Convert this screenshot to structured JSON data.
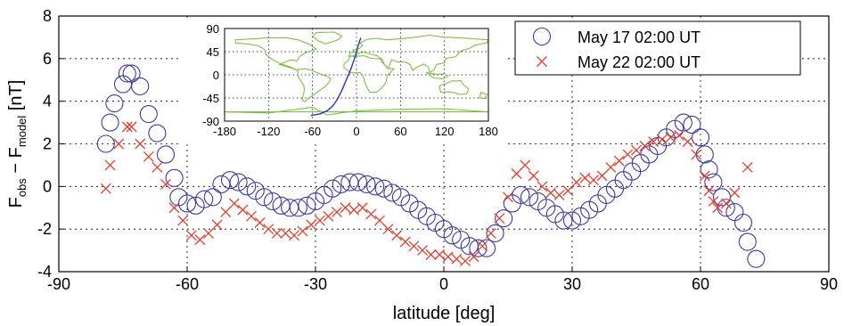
{
  "chart_data": {
    "type": "scatter",
    "xlabel": "latitude [deg]",
    "ylabel": {
      "main": "F",
      "sub1": "obs",
      "dash": " − F",
      "sub2": "model",
      "unit": " [nT]"
    },
    "xlim": [
      -90,
      90
    ],
    "ylim": [
      -4,
      8
    ],
    "xticks": [
      "-90",
      "-60",
      "-30",
      "0",
      "30",
      "60",
      "90"
    ],
    "yticks": [
      "-4",
      "-2",
      "0",
      "2",
      "4",
      "6",
      "8"
    ],
    "grid": true,
    "legend_placement": "top-right",
    "series": [
      {
        "name": "May 17 02:00 UT",
        "marker": "circle",
        "color": "#3a3aa0",
        "points": [
          [
            -79,
            2.0
          ],
          [
            -78,
            3.0
          ],
          [
            -77,
            3.9
          ],
          [
            -75,
            4.8
          ],
          [
            -74,
            5.3
          ],
          [
            -73,
            5.3
          ],
          [
            -71,
            4.7
          ],
          [
            -69,
            3.4
          ],
          [
            -67,
            2.5
          ],
          [
            -65,
            1.5
          ],
          [
            -63,
            0.4
          ],
          [
            -62,
            -0.5
          ],
          [
            -60,
            -0.8
          ],
          [
            -58,
            -0.9
          ],
          [
            -56,
            -0.6
          ],
          [
            -54,
            -0.5
          ],
          [
            -52,
            0.1
          ],
          [
            -50,
            0.3
          ],
          [
            -48,
            0.2
          ],
          [
            -46,
            0.0
          ],
          [
            -44,
            -0.2
          ],
          [
            -42,
            -0.5
          ],
          [
            -40,
            -0.7
          ],
          [
            -38,
            -0.9
          ],
          [
            -36,
            -1.0
          ],
          [
            -34,
            -1.0
          ],
          [
            -32,
            -0.9
          ],
          [
            -30,
            -0.7
          ],
          [
            -28,
            -0.4
          ],
          [
            -26,
            -0.1
          ],
          [
            -24,
            0.1
          ],
          [
            -22,
            0.2
          ],
          [
            -20,
            0.2
          ],
          [
            -18,
            0.1
          ],
          [
            -16,
            0.0
          ],
          [
            -14,
            -0.1
          ],
          [
            -12,
            -0.3
          ],
          [
            -10,
            -0.5
          ],
          [
            -8,
            -0.8
          ],
          [
            -6,
            -1.1
          ],
          [
            -4,
            -1.4
          ],
          [
            -2,
            -1.7
          ],
          [
            0,
            -2.0
          ],
          [
            2,
            -2.3
          ],
          [
            4,
            -2.5
          ],
          [
            6,
            -2.8
          ],
          [
            8,
            -2.9
          ],
          [
            10,
            -2.9
          ],
          [
            12,
            -2.2
          ],
          [
            14,
            -1.5
          ],
          [
            16,
            -0.8
          ],
          [
            18,
            -0.4
          ],
          [
            20,
            -0.5
          ],
          [
            22,
            -0.7
          ],
          [
            24,
            -1.0
          ],
          [
            26,
            -1.3
          ],
          [
            28,
            -1.6
          ],
          [
            30,
            -1.6
          ],
          [
            32,
            -1.4
          ],
          [
            34,
            -1.1
          ],
          [
            36,
            -0.8
          ],
          [
            38,
            -0.4
          ],
          [
            40,
            -0.1
          ],
          [
            42,
            0.3
          ],
          [
            44,
            0.7
          ],
          [
            46,
            1.1
          ],
          [
            48,
            1.5
          ],
          [
            50,
            1.9
          ],
          [
            52,
            2.3
          ],
          [
            54,
            2.7
          ],
          [
            56,
            3.0
          ],
          [
            58,
            2.9
          ],
          [
            60,
            2.3
          ],
          [
            61,
            1.5
          ],
          [
            62,
            0.8
          ],
          [
            63,
            0.2
          ],
          [
            65,
            -0.5
          ],
          [
            66,
            -1.0
          ],
          [
            68,
            -1.2
          ],
          [
            70,
            -1.7
          ],
          [
            71,
            -2.6
          ],
          [
            73,
            -3.4
          ]
        ]
      },
      {
        "name": "May 22 02:00 UT",
        "marker": "x",
        "color": "#e04030",
        "points": [
          [
            -79,
            -0.1
          ],
          [
            -78,
            1.0
          ],
          [
            -76,
            2.0
          ],
          [
            -74,
            2.8
          ],
          [
            -73,
            2.8
          ],
          [
            -71,
            2.0
          ],
          [
            -69,
            1.4
          ],
          [
            -67,
            0.9
          ],
          [
            -65,
            0.1
          ],
          [
            -63,
            -1.0
          ],
          [
            -61,
            -1.6
          ],
          [
            -59,
            -2.3
          ],
          [
            -57,
            -2.5
          ],
          [
            -55,
            -2.2
          ],
          [
            -53,
            -1.8
          ],
          [
            -51,
            -1.2
          ],
          [
            -49,
            -0.8
          ],
          [
            -47,
            -1.1
          ],
          [
            -45,
            -1.4
          ],
          [
            -43,
            -1.7
          ],
          [
            -41,
            -2.0
          ],
          [
            -39,
            -2.2
          ],
          [
            -37,
            -2.2
          ],
          [
            -35,
            -2.3
          ],
          [
            -33,
            -2.1
          ],
          [
            -31,
            -1.8
          ],
          [
            -29,
            -1.6
          ],
          [
            -27,
            -1.4
          ],
          [
            -25,
            -1.2
          ],
          [
            -23,
            -1.0
          ],
          [
            -21,
            -1.1
          ],
          [
            -19,
            -1.0
          ],
          [
            -17,
            -1.3
          ],
          [
            -15,
            -1.6
          ],
          [
            -13,
            -2.0
          ],
          [
            -11,
            -2.3
          ],
          [
            -9,
            -2.6
          ],
          [
            -7,
            -2.8
          ],
          [
            -5,
            -3.0
          ],
          [
            -3,
            -3.2
          ],
          [
            -1,
            -3.2
          ],
          [
            1,
            -3.3
          ],
          [
            3,
            -3.4
          ],
          [
            5,
            -3.5
          ],
          [
            7,
            -3.3
          ],
          [
            9,
            -2.8
          ],
          [
            11,
            -2.2
          ],
          [
            13,
            -1.5
          ],
          [
            15,
            -0.5
          ],
          [
            17,
            0.6
          ],
          [
            19,
            1.0
          ],
          [
            21,
            0.5
          ],
          [
            23,
            0.0
          ],
          [
            25,
            -0.3
          ],
          [
            27,
            -0.4
          ],
          [
            29,
            -0.2
          ],
          [
            31,
            0.2
          ],
          [
            33,
            0.4
          ],
          [
            35,
            0.3
          ],
          [
            37,
            0.5
          ],
          [
            39,
            0.9
          ],
          [
            41,
            1.2
          ],
          [
            43,
            1.5
          ],
          [
            45,
            1.7
          ],
          [
            47,
            1.9
          ],
          [
            49,
            2.1
          ],
          [
            51,
            2.2
          ],
          [
            53,
            2.3
          ],
          [
            55,
            2.4
          ],
          [
            57,
            2.1
          ],
          [
            59,
            1.5
          ],
          [
            61,
            0.5
          ],
          [
            62,
            -0.2
          ],
          [
            63,
            -0.7
          ],
          [
            64,
            -1.0
          ],
          [
            66,
            -0.8
          ],
          [
            68,
            -0.3
          ],
          [
            71,
            0.9
          ]
        ]
      }
    ],
    "inset": {
      "type": "map",
      "xlim": [
        -180,
        180
      ],
      "ylim": [
        -90,
        90
      ],
      "xticks": [
        "-180",
        "-120",
        "-60",
        "0",
        "60",
        "120",
        "180"
      ],
      "yticks": [
        "90",
        "45",
        "0",
        "-45",
        "-90"
      ],
      "coast_color": "#7cbf4a",
      "track_color": "#3030c0",
      "track": [
        [
          -62,
          -79
        ],
        [
          -50,
          -76
        ],
        [
          -40,
          -70
        ],
        [
          -32,
          -60
        ],
        [
          -25,
          -45
        ],
        [
          -20,
          -30
        ],
        [
          -14,
          -10
        ],
        [
          -8,
          10
        ],
        [
          -3,
          30
        ],
        [
          0,
          45
        ],
        [
          3,
          60
        ],
        [
          6,
          72
        ]
      ]
    }
  }
}
